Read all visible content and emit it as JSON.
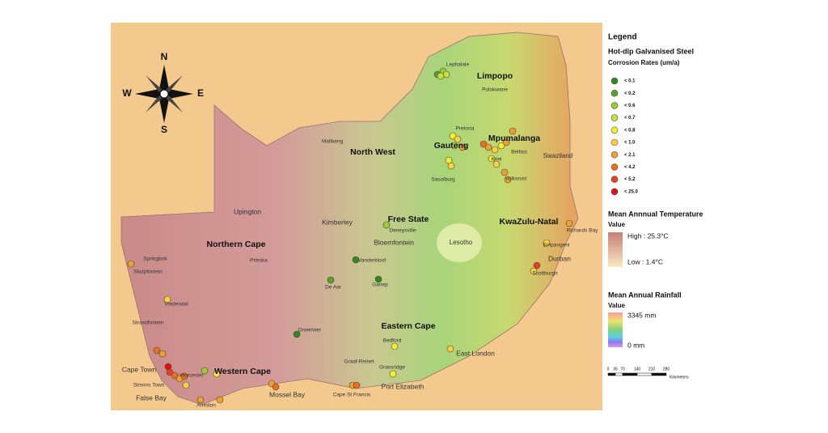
{
  "legend": {
    "title": "Legend",
    "corrosion": {
      "title_line1": "Hot-dip Galvanised Steel",
      "title_line2": "Corrosion Rates (um/a)",
      "classes": [
        {
          "label": "< 0.1",
          "color": "#2e8a1e"
        },
        {
          "label": "< 0.2",
          "color": "#5aa02a"
        },
        {
          "label": "< 0.6",
          "color": "#9acd32"
        },
        {
          "label": "< 0.7",
          "color": "#c8e040"
        },
        {
          "label": "< 0.8",
          "color": "#f0f030"
        },
        {
          "label": "< 1.0",
          "color": "#f8d040"
        },
        {
          "label": "< 2.1",
          "color": "#f0a030"
        },
        {
          "label": "< 4.2",
          "color": "#e87020"
        },
        {
          "label": "< 5.2",
          "color": "#e84020"
        },
        {
          "label": "< 25.0",
          "color": "#e01010"
        }
      ]
    },
    "temperature": {
      "title": "Mean Annnual Temperature",
      "value_label": "Value",
      "high": "High : 25.3°C",
      "low": "Low : 1.4°C"
    },
    "rainfall": {
      "title": "Mean Annual Rainfall",
      "value_label": "Value",
      "max": "3345 mm",
      "min": "0 mm"
    },
    "scale": {
      "ticks": [
        "0",
        "35",
        "70",
        "140",
        "210",
        "280"
      ],
      "unit": "Kilometers"
    }
  },
  "compass": {
    "n": "N",
    "e": "E",
    "s": "S",
    "w": "W"
  },
  "regions": [
    "Limpopo",
    "Mpumalanga",
    "Gauteng",
    "North West",
    "Free State",
    "KwaZulu-Natal",
    "Northern Cape",
    "Eastern Cape",
    "Western Cape",
    "Lesotho",
    "Swaziland"
  ],
  "places": [
    "Lephalale",
    "Polokwane",
    "Pretoria",
    "Mafikeng",
    "Belfast",
    "Kriel",
    "Sasolburg",
    "Volksrust",
    "Upington",
    "Kimberley",
    "Deneysville",
    "Bloemfontein",
    "Richards Bay",
    "Empangeni",
    "Durban",
    "Scottburgh",
    "Springbok",
    "Skulpfontein",
    "Prieska",
    "Vanderkloof",
    "De Aar",
    "Gariep",
    "Vredendal",
    "Strandfontein",
    "Droerivier",
    "Bedford",
    "Graaf-Reinet",
    "Grassridge",
    "East London",
    "Port Elizabeth",
    "Cape St Francis",
    "Mossel Bay",
    "Cape Town",
    "Worcester",
    "Simons Town",
    "False Bay",
    "Arniston"
  ]
}
